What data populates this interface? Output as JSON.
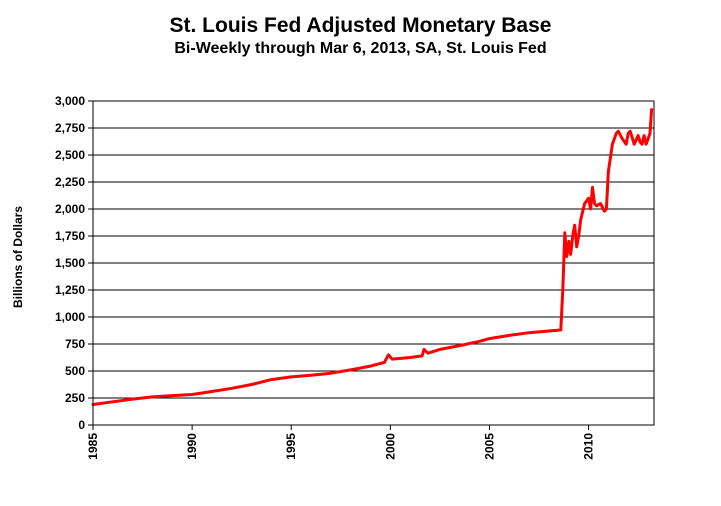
{
  "chart_data": {
    "type": "line",
    "title": "St. Louis Fed Adjusted Monetary Base",
    "subtitle": "Bi-Weekly through Mar 6, 2013, SA, St. Louis Fed",
    "xlabel": "",
    "ylabel": "Billions of Dollars",
    "xlim": [
      1985,
      2013.3
    ],
    "ylim": [
      0,
      3000
    ],
    "y_ticks": [
      "0",
      "250",
      "500",
      "750",
      "1,000",
      "1,250",
      "1,500",
      "1,750",
      "2,000",
      "2,250",
      "2,500",
      "2,750",
      "3,000"
    ],
    "x_ticks": [
      "1985",
      "1990",
      "1995",
      "2000",
      "2005",
      "2010"
    ],
    "grid": true,
    "series": [
      {
        "name": "Adjusted Monetary Base",
        "color": "#ff0000",
        "x": [
          1985.0,
          1986.0,
          1987.0,
          1988.0,
          1989.0,
          1990.0,
          1991.0,
          1992.0,
          1993.0,
          1994.0,
          1995.0,
          1996.0,
          1997.0,
          1998.0,
          1999.0,
          1999.7,
          1999.9,
          2000.1,
          2001.0,
          2001.6,
          2001.7,
          2001.9,
          2002.5,
          2003.5,
          2004.5,
          2005.0,
          2006.0,
          2007.0,
          2008.0,
          2008.6,
          2008.7,
          2008.8,
          2008.9,
          2009.0,
          2009.1,
          2009.2,
          2009.3,
          2009.4,
          2009.5,
          2009.6,
          2009.8,
          2010.0,
          2010.1,
          2010.2,
          2010.3,
          2010.4,
          2010.6,
          2010.8,
          2010.9,
          2011.0,
          2011.2,
          2011.4,
          2011.5,
          2011.7,
          2011.9,
          2012.0,
          2012.1,
          2012.3,
          2012.5,
          2012.6,
          2012.7,
          2012.8,
          2012.9,
          2013.0,
          2013.1,
          2013.18
        ],
        "values": [
          190,
          215,
          240,
          260,
          272,
          282,
          310,
          340,
          375,
          420,
          445,
          460,
          480,
          510,
          545,
          580,
          650,
          610,
          625,
          640,
          700,
          665,
          700,
          735,
          775,
          800,
          830,
          855,
          870,
          880,
          1250,
          1780,
          1560,
          1700,
          1580,
          1750,
          1850,
          1650,
          1750,
          1900,
          2050,
          2100,
          2000,
          2200,
          2050,
          2030,
          2050,
          1980,
          2000,
          2350,
          2600,
          2700,
          2720,
          2650,
          2600,
          2700,
          2720,
          2600,
          2680,
          2620,
          2600,
          2680,
          2600,
          2650,
          2700,
          2920
        ]
      }
    ]
  }
}
